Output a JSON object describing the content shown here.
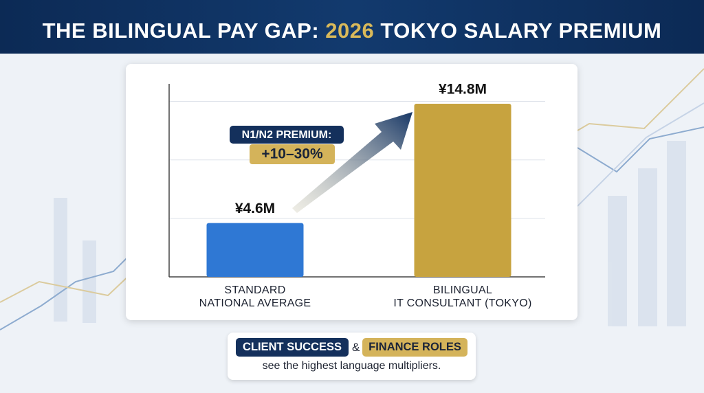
{
  "chart_data": {
    "type": "bar",
    "title_parts": [
      "THE BILINGUAL PAY GAP: ",
      "2026",
      " TOKYO SALARY PREMIUM"
    ],
    "categories": [
      "STANDARD\nNATIONAL AVERAGE",
      "BILINGUAL\nIT CONSULTANT (TOKYO)"
    ],
    "values": [
      4.6,
      14.8
    ],
    "value_labels": [
      "¥4.6M",
      "¥14.8M"
    ],
    "colors": [
      "#2f78d4",
      "#c7a33f"
    ],
    "ylim": [
      0,
      16.5
    ],
    "yticks": [
      0,
      5,
      10,
      15
    ],
    "grid": true,
    "annotation": {
      "heading": "N1/N2 PREMIUM:",
      "value": "+10–30%"
    },
    "footer": {
      "highlight_1": "CLIENT SUCCESS",
      "joiner": "&",
      "highlight_2": "FINANCE ROLES",
      "text": "see the highest language multipliers."
    }
  }
}
